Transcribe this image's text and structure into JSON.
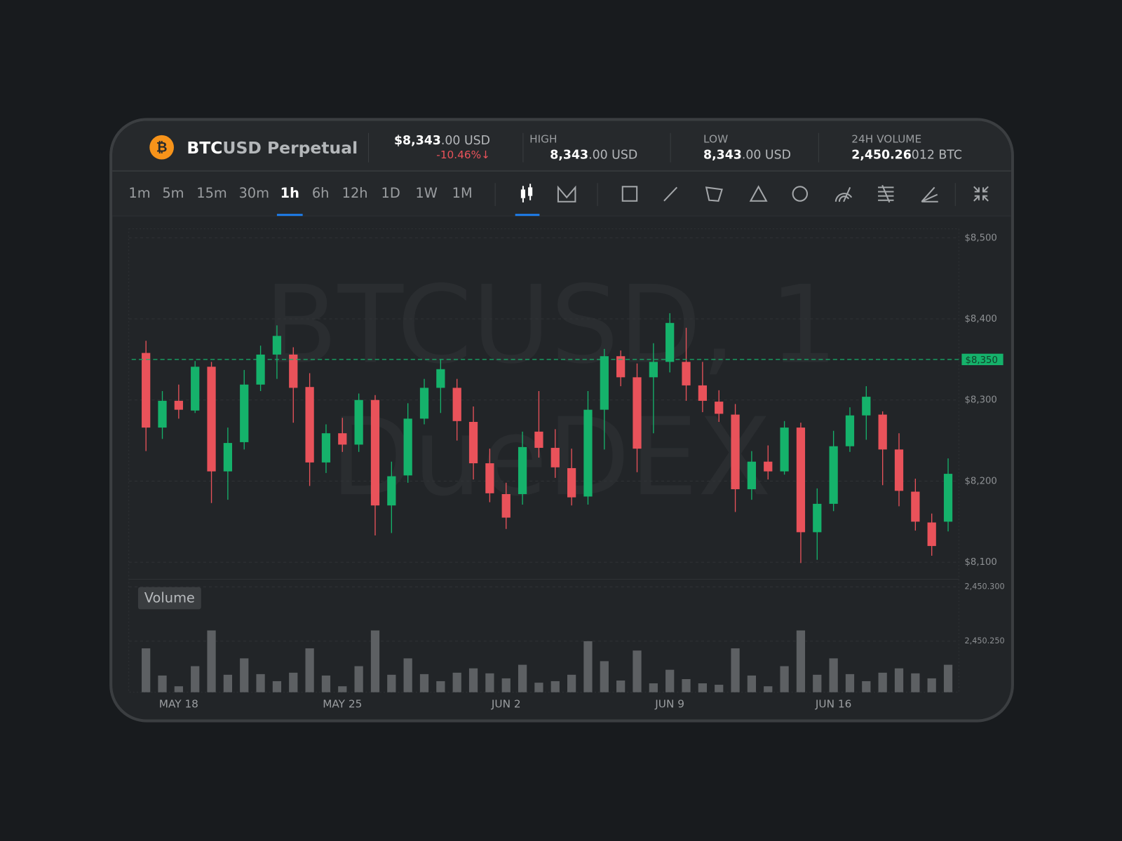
{
  "header": {
    "icon": "₿",
    "symbol_base": "BTC",
    "symbol_rest": "USD Perpetual",
    "price_main": "$8,343",
    "price_rest": ".00 USD",
    "change": "-10.46%↓",
    "high": {
      "label": "HIGH",
      "main": "8,343",
      "rest": ".00 USD"
    },
    "low": {
      "label": "LOW",
      "main": "8,343",
      "rest": ".00 USD"
    },
    "volume": {
      "label": "24H VOLUME",
      "main": "2,450.26",
      "rest": "012 BTC"
    }
  },
  "toolbar": {
    "timeframes": [
      "1m",
      "5m",
      "15m",
      "30m",
      "1h",
      "6h",
      "12h",
      "1D",
      "1W",
      "1M"
    ],
    "active_timeframe": 4
  },
  "chart_data": [
    {
      "type": "candlestick",
      "watermark": [
        "BTCUSD, 1",
        "DueDEX"
      ],
      "categories": [
        null,
        null,
        "MAY 18",
        null,
        null,
        null,
        null,
        null,
        null,
        null,
        null,
        null,
        "MAY 25",
        null,
        null,
        null,
        null,
        null,
        null,
        null,
        null,
        null,
        "JUN 2",
        null,
        null,
        null,
        null,
        null,
        null,
        null,
        null,
        null,
        "JUN 9",
        null,
        null,
        null,
        null,
        null,
        null,
        null,
        null,
        null,
        "JUN 16",
        null,
        null,
        null,
        null,
        null,
        null,
        null
      ],
      "open": [
        8358,
        8266,
        8299,
        8287,
        8341,
        8212,
        8248,
        8319,
        8356,
        8356,
        8316,
        8223,
        8259,
        8245,
        8300,
        8170,
        8207,
        8277,
        8315,
        8315,
        8273,
        8222,
        8184,
        8184,
        8261,
        8241,
        8216,
        8181,
        8288,
        8354,
        8328,
        8328,
        8347,
        8347,
        8318,
        8298,
        8282,
        8190,
        8224,
        8212,
        8266,
        8137,
        8172,
        8243,
        8281,
        8282,
        8239,
        8187,
        8149,
        8150
      ],
      "high": [
        8373,
        8311,
        8319,
        8348,
        8347,
        8266,
        8337,
        8367,
        8392,
        8365,
        8333,
        8270,
        8278,
        8308,
        8306,
        8224,
        8296,
        8326,
        8350,
        8326,
        8292,
        8240,
        8198,
        8261,
        8311,
        8264,
        8240,
        8311,
        8363,
        8361,
        8345,
        8370,
        8407,
        8389,
        8347,
        8312,
        8295,
        8237,
        8244,
        8274,
        8272,
        8191,
        8262,
        8291,
        8317,
        8286,
        8259,
        8203,
        8160,
        8228
      ],
      "low": [
        8237,
        8252,
        8277,
        8284,
        8173,
        8177,
        8239,
        8311,
        8326,
        8272,
        8194,
        8210,
        8236,
        8236,
        8133,
        8136,
        8198,
        8270,
        8284,
        8250,
        8202,
        8174,
        8141,
        8171,
        8229,
        8204,
        8170,
        8171,
        8239,
        8317,
        8211,
        8259,
        8334,
        8299,
        8285,
        8273,
        8162,
        8177,
        8202,
        8208,
        8099,
        8103,
        8163,
        8236,
        8251,
        8195,
        8169,
        8139,
        8108,
        8138
      ],
      "close": [
        8266,
        8299,
        8288,
        8341,
        8212,
        8247,
        8319,
        8356,
        8379,
        8315,
        8223,
        8259,
        8245,
        8300,
        8170,
        8206,
        8277,
        8315,
        8338,
        8274,
        8222,
        8185,
        8155,
        8242,
        8241,
        8217,
        8180,
        8288,
        8354,
        8328,
        8240,
        8347,
        8395,
        8318,
        8299,
        8283,
        8190,
        8224,
        8212,
        8266,
        8137,
        8172,
        8243,
        8281,
        8304,
        8239,
        8188,
        8150,
        8120,
        8209
      ],
      "up_color": "#15b26b",
      "down_color": "#e9525a",
      "ylim": [
        8079,
        8511
      ],
      "yticks": [
        {
          "value": 8100,
          "label": "$8,100"
        },
        {
          "value": 8200,
          "label": "$8,200"
        },
        {
          "value": 8300,
          "label": "$8,300"
        },
        {
          "value": 8400,
          "label": "$8,400"
        },
        {
          "value": 8500,
          "label": "$8,500"
        }
      ],
      "last_price": {
        "value": 8350,
        "label": "$8,350"
      },
      "grid": true
    },
    {
      "type": "bar",
      "title": "Volume",
      "values": [
        2450.2434,
        2450.2184,
        2450.2085,
        2450.227,
        2450.2599,
        2450.2191,
        2450.2342,
        2450.2197,
        2450.2132,
        2450.221,
        2450.2434,
        2450.2184,
        2450.2085,
        2450.227,
        2450.2599,
        2450.2191,
        2450.2342,
        2450.2197,
        2450.2132,
        2450.221,
        2450.225,
        2450.2204,
        2450.2158,
        2450.2283,
        2450.2118,
        2450.2132,
        2450.2191,
        2450.25,
        2450.2316,
        2450.2138,
        2450.2414,
        2450.2112,
        2450.2237,
        2450.2151,
        2450.2112,
        2450.2099,
        2450.2434,
        2450.2184,
        2450.2085,
        2450.227,
        2450.2599,
        2450.2191,
        2450.2342,
        2450.2197,
        2450.2132,
        2450.221,
        2450.225,
        2450.2204,
        2450.2158,
        2450.2283
      ],
      "color": "#5d6063",
      "ylim": [
        2450.203,
        2450.307
      ],
      "yticks": [
        {
          "value": 2450.25,
          "label": "2,450.250"
        },
        {
          "value": 2450.3,
          "label": "2,450.300"
        }
      ],
      "grid": true
    }
  ]
}
